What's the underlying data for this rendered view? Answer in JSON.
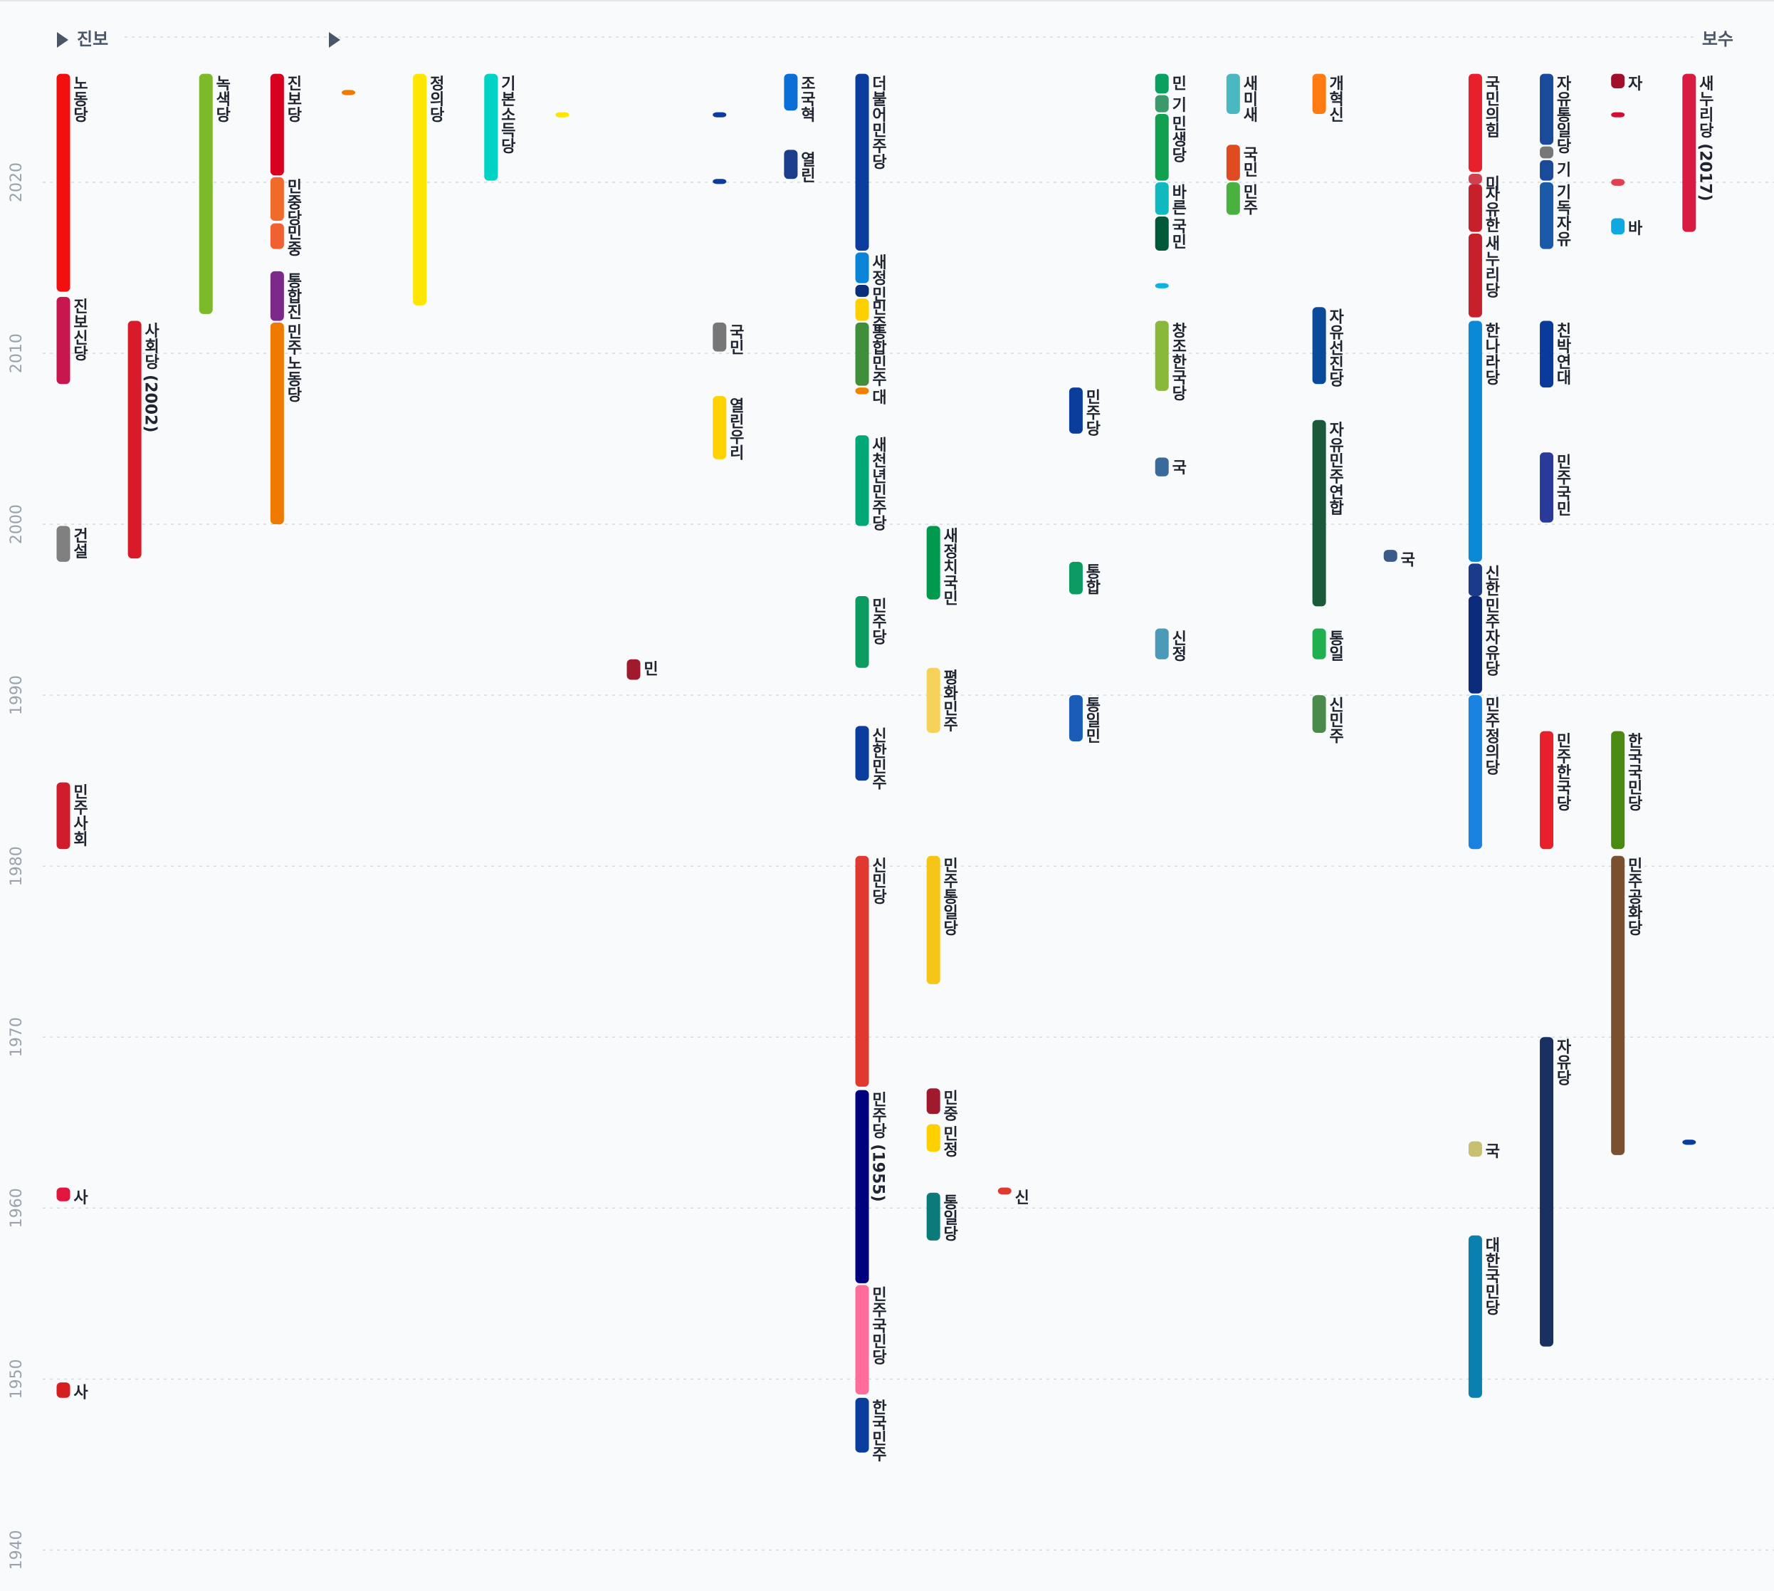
{
  "chart_data": {
    "type": "timeline",
    "left_label": "진보",
    "right_label": "보수",
    "ylim": [
      1937.6,
      2026.5
    ],
    "yticks": [
      1940,
      1950,
      1960,
      1970,
      1980,
      1990,
      2000,
      2010,
      2020
    ],
    "grid": true,
    "parties": [
      {
        "name": "노동당",
        "start": 2013.6,
        "end": 2026.35,
        "color": "#f20f0f"
      },
      {
        "name": "진보신당",
        "start": 2008.2,
        "end": 2013.3,
        "color": "#c8174f"
      },
      {
        "name": "건설",
        "start": 1997.8,
        "end": 1999.9,
        "color": "#808080"
      },
      {
        "name": "민주사회",
        "start": 1981.0,
        "end": 1984.9,
        "color": "#d01c2b"
      },
      {
        "name": "사",
        "start": 1960.4,
        "end": 1961.2,
        "color": "#e0163c"
      },
      {
        "name": "사",
        "start": 1948.9,
        "end": 1949.8,
        "color": "#d62020"
      },
      {
        "name": "사회당 (2002)",
        "start": 1998.0,
        "end": 2011.9,
        "color": "#d91a2a"
      },
      {
        "name": "녹색당",
        "start": 2012.3,
        "end": 2026.35,
        "color": "#7cba2a"
      },
      {
        "name": "진보당",
        "start": 2020.4,
        "end": 2026.35,
        "color": "#d7001f"
      },
      {
        "name": "민중당",
        "start": 2017.75,
        "end": 2020.3,
        "color": "#f06a2a"
      },
      {
        "name": "민중",
        "start": 2016.1,
        "end": 2017.6,
        "color": "#f06030"
      },
      {
        "name": "통합진",
        "start": 2011.9,
        "end": 2014.8,
        "color": "#7b2a8a"
      },
      {
        "name": "민주노동당",
        "start": 2000.0,
        "end": 2011.8,
        "color": "#f07a00"
      },
      {
        "name": null,
        "start": 2025.1,
        "end": 2025.4,
        "color": "#f07a00"
      },
      {
        "name": "정의당",
        "start": 2012.8,
        "end": 2026.35,
        "color": "#ffe600"
      },
      {
        "name": "기본소득당",
        "start": 2020.1,
        "end": 2026.35,
        "color": "#00d2c3"
      },
      {
        "name": null,
        "start": 2023.8,
        "end": 2024.1,
        "color": "#ffe600"
      },
      {
        "name": "민",
        "start": 1990.9,
        "end": 1992.1,
        "color": "#a01a2e"
      },
      {
        "name": "국민",
        "start": 2010.1,
        "end": 2011.8,
        "color": "#777777"
      },
      {
        "name": "열린우리",
        "start": 2003.8,
        "end": 2007.5,
        "color": "#ffd200"
      },
      {
        "name": null,
        "start": 2023.8,
        "end": 2024.1,
        "color": "#0a3d9c"
      },
      {
        "name": null,
        "start": 2019.9,
        "end": 2020.2,
        "color": "#0a3d9c"
      },
      {
        "name": "조국혁",
        "start": 2024.2,
        "end": 2026.35,
        "color": "#0a6fd6"
      },
      {
        "name": "열린",
        "start": 2020.2,
        "end": 2021.9,
        "color": "#1a3e8c"
      },
      {
        "name": "더불어민주당",
        "start": 2016.0,
        "end": 2026.35,
        "color": "#0a3d9c"
      },
      {
        "name": "새정",
        "start": 2014.1,
        "end": 2015.9,
        "color": "#0a84d6"
      },
      {
        "name": "민",
        "start": 2013.3,
        "end": 2014.0,
        "color": "#0a2f7a"
      },
      {
        "name": "민주",
        "start": 2011.9,
        "end": 2013.2,
        "color": "#ffd000"
      },
      {
        "name": "통합민주",
        "start": 2008.1,
        "end": 2011.8,
        "color": "#3f8f3a"
      },
      {
        "name": "대",
        "start": 2007.6,
        "end": 2008.0,
        "color": "#f08000"
      },
      {
        "name": "새천년민주당",
        "start": 1999.9,
        "end": 2005.2,
        "color": "#00a878"
      },
      {
        "name": "민주당",
        "start": 1991.6,
        "end": 1995.8,
        "color": "#0a9b60"
      },
      {
        "name": "신한민주",
        "start": 1985.0,
        "end": 1988.2,
        "color": "#0a3d9c"
      },
      {
        "name": "신민당",
        "start": 1967.1,
        "end": 1980.6,
        "color": "#e03a30"
      },
      {
        "name": "민주당 (1955)",
        "start": 1955.6,
        "end": 1966.9,
        "color": "#00007f"
      },
      {
        "name": "민주국민당",
        "start": 1949.1,
        "end": 1955.5,
        "color": "#ff6b9a"
      },
      {
        "name": "한국민주",
        "start": 1945.7,
        "end": 1948.9,
        "color": "#0a3d9c"
      },
      {
        "name": "새정치국민",
        "start": 1995.6,
        "end": 1999.9,
        "color": "#00994d"
      },
      {
        "name": "평화민주",
        "start": 1987.8,
        "end": 1991.6,
        "color": "#f5d35a"
      },
      {
        "name": "민주통일당",
        "start": 1973.1,
        "end": 1980.6,
        "color": "#f5c518"
      },
      {
        "name": "민중",
        "start": 1965.5,
        "end": 1967.0,
        "color": "#a01a2e"
      },
      {
        "name": "민정",
        "start": 1963.3,
        "end": 1964.9,
        "color": "#ffd000"
      },
      {
        "name": "통일당",
        "start": 1958.1,
        "end": 1960.9,
        "color": "#0a7a7a"
      },
      {
        "name": "신",
        "start": 1960.8,
        "end": 1961.2,
        "color": "#e03a30"
      },
      {
        "name": "민주당",
        "start": 2005.3,
        "end": 2008.0,
        "color": "#0a3d9c"
      },
      {
        "name": "통합",
        "start": 1995.9,
        "end": 1997.8,
        "color": "#0a9b60"
      },
      {
        "name": "통일민",
        "start": 1987.3,
        "end": 1990.0,
        "color": "#1a5cb8"
      },
      {
        "name": "민",
        "start": 2025.2,
        "end": 2026.35,
        "color": "#0aa060"
      },
      {
        "name": "기",
        "start": 2024.1,
        "end": 2025.1,
        "color": "#3a9a6a"
      },
      {
        "name": "민생당",
        "start": 2020.1,
        "end": 2024.0,
        "color": "#10a050"
      },
      {
        "name": "바른",
        "start": 2018.1,
        "end": 2020.0,
        "color": "#10b9c0"
      },
      {
        "name": "국민",
        "start": 2016.0,
        "end": 2018.0,
        "color": "#005a3a"
      },
      {
        "name": null,
        "start": 2013.8,
        "end": 2014.1,
        "color": "#10b0e0"
      },
      {
        "name": "창조한국당",
        "start": 2007.8,
        "end": 2011.9,
        "color": "#8ab83a"
      },
      {
        "name": "국",
        "start": 2002.8,
        "end": 2003.9,
        "color": "#3a6a9a"
      },
      {
        "name": "신정",
        "start": 1992.1,
        "end": 1993.9,
        "color": "#4a9ab8"
      },
      {
        "name": "새미새",
        "start": 2024.0,
        "end": 2026.35,
        "color": "#4ab8c0"
      },
      {
        "name": "국민",
        "start": 2020.1,
        "end": 2022.2,
        "color": "#e04a20"
      },
      {
        "name": "민주",
        "start": 2018.1,
        "end": 2020.0,
        "color": "#4ab040"
      },
      {
        "name": "개혁신",
        "start": 2024.0,
        "end": 2026.35,
        "color": "#ff7a10"
      },
      {
        "name": "자유선진당",
        "start": 2008.2,
        "end": 2012.7,
        "color": "#0a4a9a"
      },
      {
        "name": "자유민주연합",
        "start": 1995.2,
        "end": 2006.1,
        "color": "#1a5a3a"
      },
      {
        "name": "통일",
        "start": 1992.1,
        "end": 1993.9,
        "color": "#20b050"
      },
      {
        "name": "신민주",
        "start": 1987.8,
        "end": 1990.0,
        "color": "#4a8a4a"
      },
      {
        "name": "국",
        "start": 1997.8,
        "end": 1998.5,
        "color": "#3a5a8a"
      },
      {
        "name": "국민의힘",
        "start": 2020.6,
        "end": 2026.35,
        "color": "#e8202c"
      },
      {
        "name": "미",
        "start": 2019.9,
        "end": 2020.5,
        "color": "#d04050"
      },
      {
        "name": "자유한",
        "start": 2017.1,
        "end": 2019.9,
        "color": "#c8202a"
      },
      {
        "name": "새누리당",
        "start": 2012.1,
        "end": 2017.0,
        "color": "#c8202a"
      },
      {
        "name": "한나라당",
        "start": 1997.8,
        "end": 2011.9,
        "color": "#0a8ad6"
      },
      {
        "name": "신한",
        "start": 1995.8,
        "end": 1997.7,
        "color": "#1a3a8a"
      },
      {
        "name": "민주자유당",
        "start": 1990.1,
        "end": 1995.8,
        "color": "#0a2a7a"
      },
      {
        "name": "민주정의당",
        "start": 1981.0,
        "end": 1990.0,
        "color": "#1a82e0"
      },
      {
        "name": "국",
        "start": 1963.0,
        "end": 1963.9,
        "color": "#c8c070"
      },
      {
        "name": "대한국민당",
        "start": 1948.9,
        "end": 1958.4,
        "color": "#0a80b0"
      },
      {
        "name": "자유통일당",
        "start": 2022.2,
        "end": 2026.35,
        "color": "#1a4a9a"
      },
      {
        "name": null,
        "start": 2021.4,
        "end": 2022.1,
        "color": "#777777"
      },
      {
        "name": "기",
        "start": 2020.1,
        "end": 2021.3,
        "color": "#1a4a9a"
      },
      {
        "name": "기독자유",
        "start": 2016.1,
        "end": 2020.0,
        "color": "#1a5aa8"
      },
      {
        "name": "친박연대",
        "start": 2008.0,
        "end": 2011.9,
        "color": "#0a3a9a"
      },
      {
        "name": "민주국민",
        "start": 2000.1,
        "end": 2004.2,
        "color": "#2a3a9a"
      },
      {
        "name": "민주한국당",
        "start": 1981.0,
        "end": 1987.9,
        "color": "#e8202c"
      },
      {
        "name": "자유당",
        "start": 1951.9,
        "end": 1970.0,
        "color": "#1a3060"
      },
      {
        "name": "자",
        "start": 2025.5,
        "end": 2026.35,
        "color": "#a0102a"
      },
      {
        "name": null,
        "start": 2023.8,
        "end": 2024.1,
        "color": "#d01030"
      },
      {
        "name": null,
        "start": 2019.8,
        "end": 2020.2,
        "color": "#e04050"
      },
      {
        "name": "바",
        "start": 2016.95,
        "end": 2017.9,
        "color": "#10a8e0"
      },
      {
        "name": "한국국민당",
        "start": 1981.0,
        "end": 1987.9,
        "color": "#4a8a10"
      },
      {
        "name": "민주공화당",
        "start": 1963.1,
        "end": 1980.6,
        "color": "#7a5030"
      },
      {
        "name": "새누리당 (2017)",
        "start": 2017.1,
        "end": 2026.35,
        "color": "#d81b40"
      },
      {
        "name": null,
        "start": 1963.7,
        "end": 1964.0,
        "color": "#0a3d9c"
      }
    ]
  }
}
